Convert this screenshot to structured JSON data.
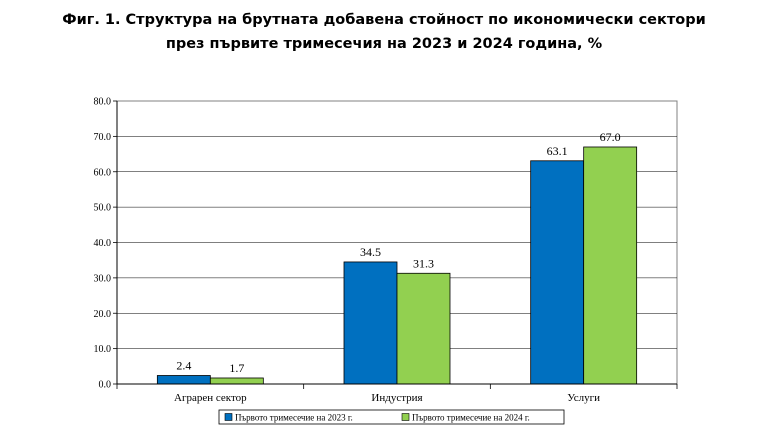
{
  "header": {
    "title_line1": "Фиг. 1. Структура на брутната добавена стойност по икономически сектори",
    "title_line2": "през първите тримесечия на 2023 и 2024 година, %"
  },
  "chart_data": {
    "type": "bar",
    "categories": [
      "Аграрен сектор",
      "Индустрия",
      "Услуги"
    ],
    "series": [
      {
        "name": "Първото тримесечие на 2023 г.",
        "values": [
          2.4,
          34.5,
          63.1
        ],
        "color": "#0070c0"
      },
      {
        "name": "Първото тримесечие на 2024 г.",
        "values": [
          1.7,
          31.3,
          67.0
        ],
        "color": "#92d050"
      }
    ],
    "ylim": [
      0,
      80
    ],
    "yticks": [
      "0.0",
      "10.0",
      "20.0",
      "30.0",
      "40.0",
      "50.0",
      "60.0",
      "70.0",
      "80.0"
    ],
    "grid": true,
    "legend_position": "bottom"
  }
}
